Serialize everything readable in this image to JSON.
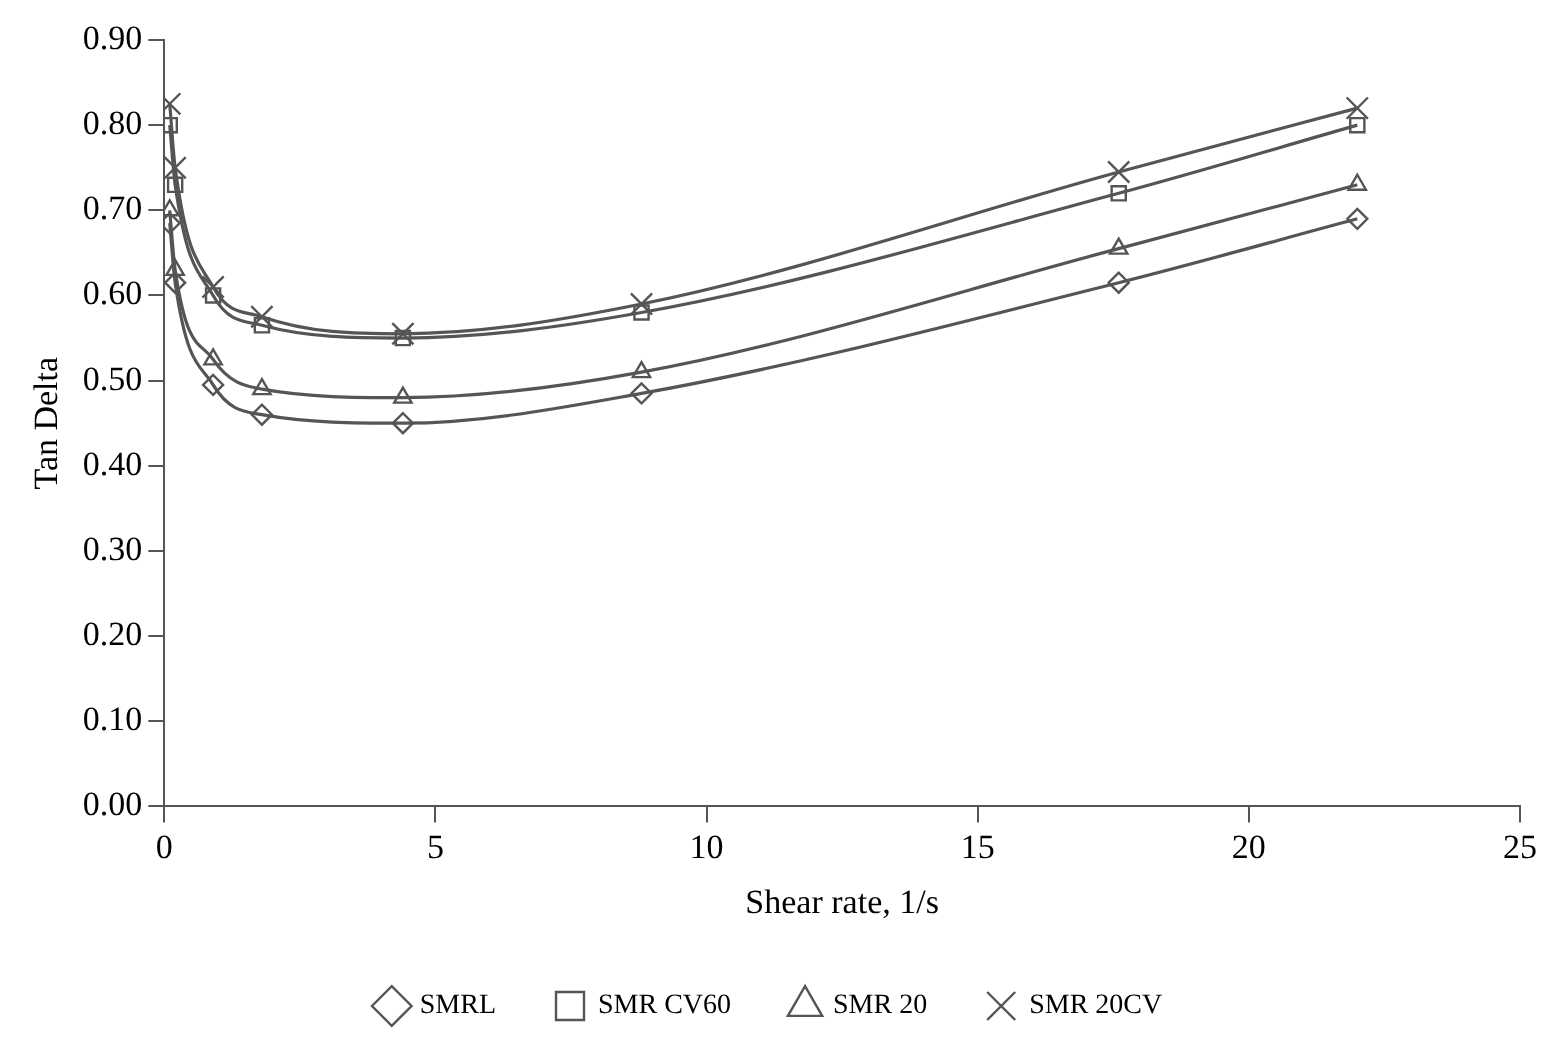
{
  "chart_data": {
    "type": "line",
    "xlabel": "Shear rate, 1/s",
    "ylabel": "Tan Delta",
    "x": [
      0.1,
      0.2,
      0.9,
      1.8,
      4.4,
      8.8,
      17.6,
      22
    ],
    "series": [
      {
        "name": "SMRL",
        "color": "#555555",
        "marker": "diamond",
        "values": [
          0.685,
          0.615,
          0.495,
          0.46,
          0.45,
          0.485,
          0.615,
          0.69
        ]
      },
      {
        "name": "SMR CV60",
        "color": "#555555",
        "marker": "square",
        "values": [
          0.8,
          0.73,
          0.6,
          0.565,
          0.55,
          0.58,
          0.72,
          0.8
        ]
      },
      {
        "name": "SMR 20",
        "color": "#555555",
        "marker": "triangle",
        "values": [
          0.7,
          0.63,
          0.525,
          0.49,
          0.48,
          0.51,
          0.655,
          0.73
        ]
      },
      {
        "name": "SMR 20CV",
        "color": "#555555",
        "marker": "cross",
        "values": [
          0.825,
          0.75,
          0.61,
          0.575,
          0.555,
          0.59,
          0.745,
          0.82
        ]
      }
    ],
    "xlim": [
      0,
      25
    ],
    "xticks": [
      0,
      5,
      10,
      15,
      20,
      25
    ],
    "ylim": [
      0,
      0.9
    ],
    "yticks": [
      {
        "value": 0,
        "label": "0.00"
      },
      {
        "value": 0.1,
        "label": "0.10"
      },
      {
        "value": 0.2,
        "label": "0.20"
      },
      {
        "value": 0.3,
        "label": "0.30"
      },
      {
        "value": 0.4,
        "label": "0.40"
      },
      {
        "value": 0.5,
        "label": "0.50"
      },
      {
        "value": 0.6,
        "label": "0.60"
      },
      {
        "value": 0.7,
        "label": "0.70"
      },
      {
        "value": 0.8,
        "label": "0.80"
      },
      {
        "value": 0.9,
        "label": "0.90"
      }
    ],
    "grid": false,
    "legend": "bottom",
    "line_style": "solid"
  }
}
